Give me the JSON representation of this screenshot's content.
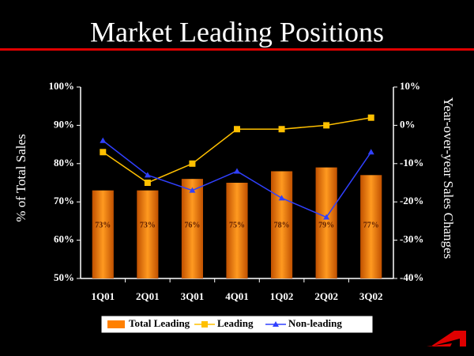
{
  "chart_data": {
    "type": "bar",
    "title": "Market Leading Positions",
    "y_label": "% of Total Sales",
    "y2_label": "Year-over-year Sales Changes",
    "categories": [
      "1Q01",
      "2Q01",
      "3Q01",
      "4Q01",
      "1Q02",
      "2Q02",
      "3Q02"
    ],
    "series": [
      {
        "name": "Total Leading",
        "type": "bar",
        "color": "#ff8000",
        "values": [
          73,
          73,
          76,
          75,
          78,
          79,
          77
        ],
        "value_labels": [
          "73%",
          "73%",
          "76%",
          "75%",
          "78%",
          "79%",
          "77%"
        ]
      },
      {
        "name": "Leading",
        "type": "line",
        "axis": "y2",
        "marker": "square",
        "color": "#ffc000",
        "values": [
          -7,
          -15,
          -10,
          -1,
          -1,
          0,
          2
        ]
      },
      {
        "name": "Non-leading",
        "type": "line",
        "axis": "y2",
        "marker": "triangle",
        "color": "#3040ff",
        "values": [
          -4,
          -13,
          -17,
          -12,
          -19,
          -24,
          -7
        ]
      }
    ],
    "ylim": [
      50,
      100
    ],
    "yticks": [
      {
        "value": 50,
        "label": "50%"
      },
      {
        "value": 60,
        "label": "60%"
      },
      {
        "value": 70,
        "label": "70%"
      },
      {
        "value": 80,
        "label": "80%"
      },
      {
        "value": 90,
        "label": "90%"
      },
      {
        "value": 100,
        "label": "100%"
      }
    ],
    "y2lim": [
      -40,
      10
    ],
    "y2ticks": [
      {
        "value": -40,
        "label": "-40%"
      },
      {
        "value": -30,
        "label": "-30%"
      },
      {
        "value": -20,
        "label": "-20%"
      },
      {
        "value": -10,
        "label": "-10%"
      },
      {
        "value": 0,
        "label": "0%"
      },
      {
        "value": 10,
        "label": "10%"
      }
    ],
    "legend": "bottom",
    "grid": false
  }
}
